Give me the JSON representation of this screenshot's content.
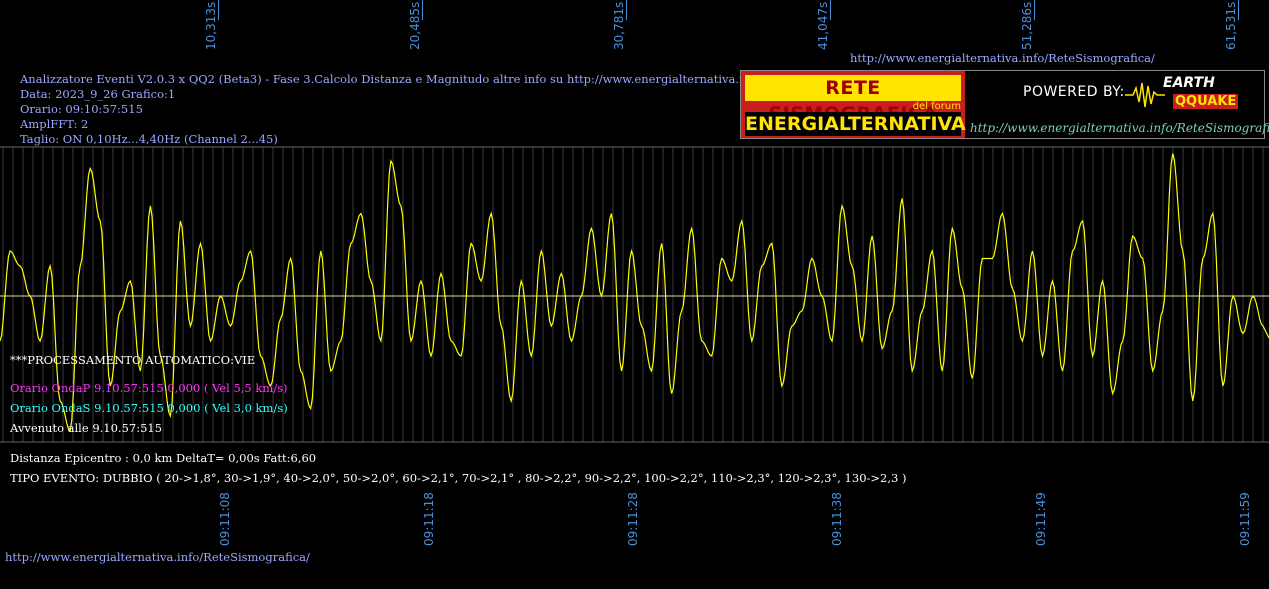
{
  "header": {
    "line1": "Analizzatore Eventi V2.0.3 x QQ2 (Beta3) - Fase 3.Calcolo Distanza e Magnitudo altre info su http://www.energialternativa.info/ReteSism",
    "data": "Data: 2023_9_26 Grafico:1",
    "orario": "Orario: 09:10:57:515",
    "amplfft": "AmplFFT: 2",
    "taglio": "Taglio: ON 0,10Hz...4,40Hz       (Channel 2...45)"
  },
  "top_url": "http://www.energialternativa.info/ReteSismografica/",
  "bottom_url": "http://www.energialternativa.info/ReteSismografica/",
  "logo": {
    "line1": "RETE SISMOGRAFICA",
    "line2": "del forum",
    "line3": "ENERGIALTERNATIVA",
    "powered": "POWERED BY:",
    "earth": "EARTH",
    "qquake": "QQUAKE",
    "url": "http://www.energialternativa.info/ReteSismografica"
  },
  "info": {
    "processing": "***PROCESSAMENTO AUTOMATICO:VIE",
    "onda_p": "Orario OndaP 9.10.57:515  0,000 ( Vel 5,5 km/s)",
    "onda_s": "Orario OndaS 9.10.57:515  0,000 ( Vel 3,0 km/s)",
    "avvenuto": "Avvenuto alle 9.10.57:515",
    "distanza": "Distanza Epicentro : 0,0 km DeltaT= 0,00s  Fatt:6,60",
    "tipo": "TIPO EVENTO: DUBBIO ( 20->1,8°, 30->1,9°, 40->2,0°, 50->2,0°, 60->2,1°, 70->2,1° , 80->2,2°, 90->2,2°, 100->2,2°, 110->2,3°, 120->2,3°, 130->2,3 )"
  },
  "colors": {
    "background": "#000000",
    "signal": "#ffff00",
    "grid": "#555555",
    "baseline": "#e0e0a0",
    "tick_text": "#4a90d9",
    "onda_p": "#ff33ff",
    "onda_s": "#33ffff",
    "header_text": "#9aa8ff"
  },
  "chart_data": {
    "type": "line",
    "title": "",
    "xlabel": "",
    "ylabel": "",
    "top_ticks": [
      "10,313s",
      "20,485s",
      "30,781s",
      "41,047s",
      "51,286s",
      "61,531s"
    ],
    "bottom_ticks": [
      "09:11:08",
      "09:11:18",
      "09:11:28",
      "09:11:38",
      "09:11:49",
      "09:11:59"
    ],
    "xlim": [
      0,
      63.3
    ],
    "ylim": [
      -1,
      1
    ],
    "x": [
      0,
      0.5,
      1,
      1.5,
      2,
      2.5,
      3,
      3.5,
      4,
      4.5,
      5,
      5.5,
      6,
      6.5,
      7,
      7.5,
      8,
      8.5,
      9,
      9.5,
      10,
      10.5,
      11,
      11.5,
      12,
      12.5,
      13,
      13.5,
      14,
      14.5,
      15,
      15.5,
      16,
      16.5,
      17,
      17.5,
      18,
      18.5,
      19,
      19.5,
      20,
      20.5,
      21,
      21.5,
      22,
      22.5,
      23,
      23.5,
      24,
      24.5,
      25,
      25.5,
      26,
      26.5,
      27,
      27.5,
      28,
      28.5,
      29,
      29.5,
      30,
      30.5,
      31,
      31.5,
      32,
      32.5,
      33,
      33.5,
      34,
      34.5,
      35,
      35.5,
      36,
      36.5,
      37,
      37.5,
      38,
      38.5,
      39,
      39.5,
      40,
      40.5,
      41,
      41.5,
      42,
      42.5,
      43,
      43.5,
      44,
      44.5,
      45,
      45.5,
      46,
      46.5,
      47,
      47.5,
      48,
      48.5,
      49,
      49.5,
      50,
      50.5,
      51,
      51.5,
      52,
      52.5,
      53,
      53.5,
      54,
      54.5,
      55,
      55.5,
      56,
      56.5,
      57,
      57.5,
      58,
      58.5,
      59,
      59.5,
      60,
      60.5,
      61,
      61.5,
      62,
      62.5,
      63
    ],
    "values": [
      -0.3,
      0.3,
      0.2,
      0.0,
      -0.3,
      0.2,
      -0.7,
      -0.9,
      0.2,
      0.85,
      0.5,
      -0.6,
      -0.1,
      0.1,
      -0.5,
      0.6,
      -0.4,
      -0.8,
      0.5,
      -0.2,
      0.35,
      -0.3,
      0.0,
      -0.2,
      0.1,
      0.3,
      -0.4,
      -0.6,
      -0.15,
      0.25,
      -0.5,
      -0.75,
      0.3,
      -0.5,
      -0.3,
      0.35,
      0.55,
      0.1,
      -0.3,
      0.9,
      0.6,
      -0.3,
      0.1,
      -0.4,
      0.15,
      -0.3,
      -0.4,
      0.35,
      0.1,
      0.55,
      -0.2,
      -0.7,
      0.1,
      -0.4,
      0.3,
      -0.2,
      0.15,
      -0.3,
      0.0,
      0.45,
      0.0,
      0.55,
      -0.5,
      0.3,
      -0.2,
      -0.5,
      0.35,
      -0.65,
      -0.1,
      0.45,
      -0.3,
      -0.4,
      0.25,
      0.1,
      0.5,
      -0.3,
      0.2,
      0.35,
      -0.6,
      -0.2,
      -0.1,
      0.25,
      0.0,
      -0.3,
      0.6,
      0.2,
      -0.3,
      0.4,
      -0.35,
      -0.1,
      0.65,
      -0.5,
      -0.1,
      0.3,
      -0.5,
      0.45,
      0.05,
      -0.55,
      0.25,
      0.25,
      0.55,
      0.05,
      -0.3,
      0.3,
      -0.4,
      0.1,
      -0.5,
      0.3,
      0.5,
      -0.4,
      0.1,
      -0.65,
      -0.3,
      0.4,
      0.25,
      -0.5,
      -0.1,
      0.95,
      0.3,
      -0.7,
      0.25,
      0.55,
      -0.6,
      0.0,
      -0.25,
      0.0,
      -0.2
    ]
  }
}
